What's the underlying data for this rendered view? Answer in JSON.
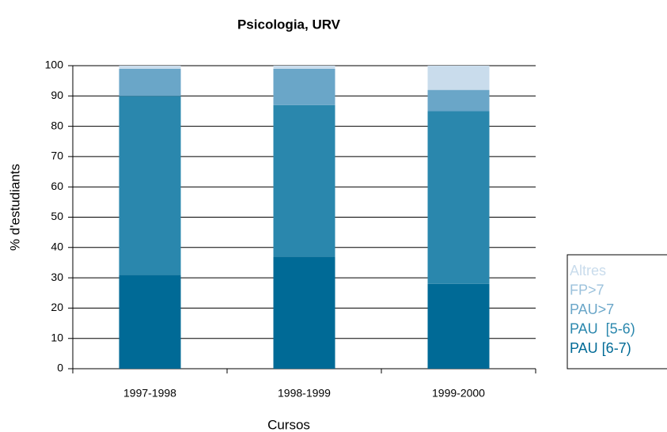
{
  "chart_data": {
    "type": "stacked_bar",
    "title": "Psicologia, URV",
    "x_label": "Cursos",
    "y_label": "% d'estudiants",
    "categories": [
      "1997-1998",
      "1998-1999",
      "1999-2000"
    ],
    "series": [
      {
        "name": "PAU [6-7)",
        "color": "#006a96",
        "values": [
          31,
          37,
          28
        ]
      },
      {
        "name": "PAU  [5-6)",
        "color": "#2a87ad",
        "values": [
          59,
          50,
          57
        ]
      },
      {
        "name": "PAU>7",
        "color": "#6aa6c8",
        "values": [
          9,
          12,
          7
        ]
      },
      {
        "name": "FP>7",
        "color": "#9cc2dc",
        "values": [
          0,
          0,
          0
        ]
      },
      {
        "name": "Altres",
        "color": "#c9dcec",
        "values": [
          1,
          1,
          8
        ]
      }
    ],
    "ylim": [
      0,
      100
    ],
    "yticks": [
      0,
      10,
      20,
      30,
      40,
      50,
      60,
      70,
      80,
      90,
      100
    ],
    "grid": true
  }
}
